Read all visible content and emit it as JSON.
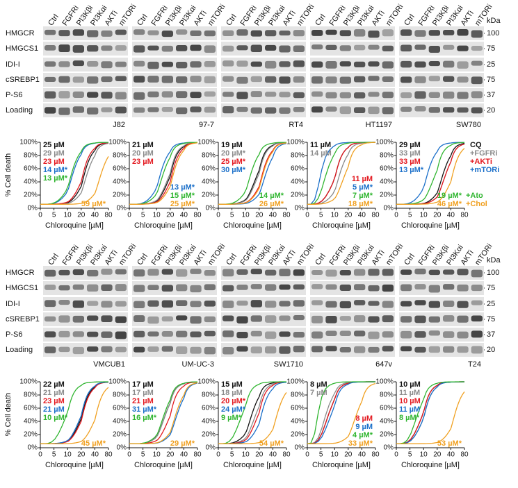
{
  "colors": [
    "#111111",
    "#8a8a8a",
    "#e3171e",
    "#1a6fc9",
    "#2fb52f",
    "#f0a020"
  ],
  "rows": [
    {
      "blot_rows": [
        "HMGCR",
        "HMGCS1",
        "IDI-I",
        "cSREBP1",
        "P-S6",
        "Loading"
      ],
      "kda_header": "kDa",
      "kda_markers": [
        "100",
        "75",
        "25",
        "75",
        "37",
        "20"
      ],
      "ylabel": "% Cell death",
      "panels": [
        {
          "cell_line": "J82",
          "lanes": [
            "Ctrl",
            "FGFRi",
            "PI3Kβi",
            "PI3Kαi",
            "AKTi",
            "mTORi"
          ],
          "xlabel": "Chloroquine [µM]",
          "xlim": [
            0,
            80
          ],
          "xticks": [
            0,
            5,
            10,
            20,
            40,
            80
          ],
          "ylim": [
            0,
            100
          ],
          "yticks": [
            {
              "value": 0,
              "label": "0%"
            },
            {
              "value": 20,
              "label": "20%"
            },
            {
              "value": 40,
              "label": "40%"
            },
            {
              "value": 60,
              "label": "60%"
            },
            {
              "value": 80,
              "label": "80%"
            },
            {
              "value": 100,
              "label": "100%"
            }
          ],
          "ic50_values": [
            25,
            29,
            23,
            14,
            13,
            59
          ],
          "ic50_labels": [
            "25 µM",
            "29 µM",
            "23 µM",
            "14 µM*",
            "13 µM*",
            "59 µM*"
          ]
        },
        {
          "cell_line": "97-7",
          "lanes": [
            "Ctrl",
            "FGFRi",
            "PI3Kβi",
            "PI3Kαi",
            "AKTi",
            "mTORi"
          ],
          "xlabel": "Chloroquine [µM]",
          "xlim": [
            0,
            80
          ],
          "xticks": [
            0,
            5,
            10,
            20,
            40,
            80
          ],
          "ylim": [
            0,
            100
          ],
          "yticks": [
            {
              "value": 0,
              "label": "0%"
            },
            {
              "value": 20,
              "label": "20%"
            },
            {
              "value": 40,
              "label": "40%"
            },
            {
              "value": 60,
              "label": "60%"
            },
            {
              "value": 80,
              "label": "80%"
            },
            {
              "value": 100,
              "label": "100%"
            }
          ],
          "ic50_values": [
            21,
            20,
            23,
            13,
            15,
            25
          ],
          "ic50_labels": [
            "21 µM",
            "20 µM",
            "23 µM",
            "13 µM*",
            "15 µM*",
            "25 µM*"
          ]
        },
        {
          "cell_line": "RT4",
          "lanes": [
            "Ctrl",
            "FGFRi",
            "PI3Kβi",
            "PI3Kαi",
            "AKTi",
            "mTORi"
          ],
          "xlabel": "Chloroquine [µM]",
          "xlim": [
            0,
            80
          ],
          "xticks": [
            0,
            5,
            10,
            20,
            40,
            80
          ],
          "ylim": [
            0,
            100
          ],
          "yticks": [
            {
              "value": 0,
              "label": "0%"
            },
            {
              "value": 20,
              "label": "20%"
            },
            {
              "value": 40,
              "label": "40%"
            },
            {
              "value": 60,
              "label": "60%"
            },
            {
              "value": 80,
              "label": "80%"
            },
            {
              "value": 100,
              "label": "100%"
            }
          ],
          "ic50_values": [
            19,
            20,
            25,
            30,
            14,
            26
          ],
          "ic50_labels": [
            "19 µM",
            "20 µM*",
            "25 µM*",
            "30 µM*",
            "14 µM*",
            "26 µM*"
          ]
        },
        {
          "cell_line": "HT1197",
          "lanes": [
            "Ctrl",
            "FGFRi",
            "PI3Kβi",
            "PI3Kαi",
            "AKTi",
            "mTORi"
          ],
          "xlabel": "Chloroquine [µM]",
          "xlim": [
            0,
            80
          ],
          "xticks": [
            0,
            5,
            10,
            20,
            40,
            80
          ],
          "ylim": [
            0,
            100
          ],
          "yticks": [
            {
              "value": 0,
              "label": "0%"
            },
            {
              "value": 20,
              "label": "20%"
            },
            {
              "value": 40,
              "label": "40%"
            },
            {
              "value": 60,
              "label": "60%"
            },
            {
              "value": 80,
              "label": "80%"
            },
            {
              "value": 100,
              "label": "100%"
            }
          ],
          "ic50_values": [
            11,
            14,
            11,
            5,
            7,
            18
          ],
          "ic50_labels": [
            "11 µM",
            "14 µM",
            "11 µM",
            "5 µM*",
            "7 µM*",
            "18 µM*"
          ]
        },
        {
          "cell_line": "SW780",
          "lanes": [
            "Ctrl",
            "FGFRi",
            "PI3Kβi",
            "PI3Kαi",
            "AKTi",
            "mTORi"
          ],
          "xlabel": "Chloroquine [µM]",
          "xlim": [
            0,
            80
          ],
          "xticks": [
            0,
            5,
            10,
            20,
            40,
            80
          ],
          "ylim": [
            0,
            100
          ],
          "yticks": [
            {
              "value": 0,
              "label": "0%"
            },
            {
              "value": 20,
              "label": "20%"
            },
            {
              "value": 40,
              "label": "40%"
            },
            {
              "value": 60,
              "label": "60%"
            },
            {
              "value": 80,
              "label": "80%"
            },
            {
              "value": 100,
              "label": "100%"
            }
          ],
          "ic50_values": [
            29,
            33,
            33,
            13,
            19,
            46
          ],
          "ic50_labels": [
            "29 µM",
            "33 µM",
            "33 µM",
            "13 µM*",
            "19 µM*",
            "46 µM*"
          ],
          "legend": [
            "CQ",
            "+FGFRi",
            "+AKTi",
            "+mTORi",
            "+Ato",
            "+Chol"
          ]
        }
      ]
    },
    {
      "blot_rows": [
        "HMGCR",
        "HMGCS1",
        "IDI-I",
        "cSREBP1",
        "P-S6",
        "Loading"
      ],
      "kda_header": "kDa",
      "kda_markers": [
        "100",
        "75",
        "25",
        "75",
        "37",
        "20"
      ],
      "ylabel": "% Cell death",
      "panels": [
        {
          "cell_line": "VMCUB1",
          "lanes": [
            "Ctrl",
            "FGFRi",
            "PI3Kβi",
            "PI3Kαi",
            "AKTi",
            "mTORi"
          ],
          "xlabel": "Chloroquine [µM]",
          "xlim": [
            0,
            80
          ],
          "xticks": [
            0,
            5,
            10,
            20,
            40,
            80
          ],
          "ylim": [
            0,
            100
          ],
          "yticks": [
            {
              "value": 0,
              "label": "0%"
            },
            {
              "value": 20,
              "label": "20%"
            },
            {
              "value": 40,
              "label": "40%"
            },
            {
              "value": 60,
              "label": "60%"
            },
            {
              "value": 80,
              "label": "80%"
            },
            {
              "value": 100,
              "label": "100%"
            }
          ],
          "ic50_values": [
            22,
            21,
            23,
            21,
            10,
            45
          ],
          "ic50_labels": [
            "22 µM",
            "21 µM",
            "23 µM",
            "21 µM",
            "10 µM*",
            "45 µM*"
          ]
        },
        {
          "cell_line": "UM-UC-3",
          "lanes": [
            "Ctrl",
            "FGFRi",
            "PI3Kβi",
            "PI3Kαi",
            "AKTi",
            "mTORi"
          ],
          "xlabel": "Chloroquine [µM]",
          "xlim": [
            0,
            80
          ],
          "xticks": [
            0,
            5,
            10,
            20,
            40,
            80
          ],
          "ylim": [
            0,
            100
          ],
          "yticks": [
            {
              "value": 0,
              "label": "0%"
            },
            {
              "value": 20,
              "label": "20%"
            },
            {
              "value": 40,
              "label": "40%"
            },
            {
              "value": 60,
              "label": "60%"
            },
            {
              "value": 80,
              "label": "80%"
            },
            {
              "value": 100,
              "label": "100%"
            }
          ],
          "ic50_values": [
            17,
            17,
            21,
            31,
            16,
            29
          ],
          "ic50_labels": [
            "17 µM",
            "17 µM",
            "21 µM",
            "31 µM*",
            "16 µM*",
            "29 µM*"
          ]
        },
        {
          "cell_line": "SW1710",
          "lanes": [
            "Ctrl",
            "FGFRi",
            "PI3Kβi",
            "PI3Kαi",
            "AKTi",
            "mTORi"
          ],
          "xlabel": "Chloroquine [µM]",
          "xlim": [
            0,
            80
          ],
          "xticks": [
            0,
            5,
            10,
            20,
            40,
            80
          ],
          "ylim": [
            0,
            100
          ],
          "yticks": [
            {
              "value": 0,
              "label": "0%"
            },
            {
              "value": 20,
              "label": "20%"
            },
            {
              "value": 40,
              "label": "40%"
            },
            {
              "value": 60,
              "label": "60%"
            },
            {
              "value": 80,
              "label": "80%"
            },
            {
              "value": 100,
              "label": "100%"
            }
          ],
          "ic50_values": [
            15,
            18,
            20,
            24,
            9,
            54
          ],
          "ic50_labels": [
            "15 µM",
            "18 µM",
            "20 µM*",
            "24 µM*",
            "9 µM*",
            "54 µM*"
          ]
        },
        {
          "cell_line": "647v",
          "lanes": [
            "Ctrl",
            "FGFRi",
            "PI3Kβi",
            "PI3Kαi",
            "AKTi",
            "mTORi"
          ],
          "xlabel": "Chloroquine [µM]",
          "xlim": [
            0,
            80
          ],
          "xticks": [
            0,
            5,
            10,
            20,
            40,
            80
          ],
          "ylim": [
            0,
            100
          ],
          "yticks": [
            {
              "value": 0,
              "label": "0%"
            },
            {
              "value": 20,
              "label": "20%"
            },
            {
              "value": 40,
              "label": "40%"
            },
            {
              "value": 60,
              "label": "60%"
            },
            {
              "value": 80,
              "label": "80%"
            },
            {
              "value": 100,
              "label": "100%"
            }
          ],
          "ic50_values": [
            8,
            7,
            8,
            9,
            4,
            33
          ],
          "ic50_labels": [
            "8 µM",
            "7 µM",
            "8 µM",
            "9 µM",
            "4 µM*",
            "33 µM*"
          ]
        },
        {
          "cell_line": "T24",
          "lanes": [
            "Ctrl",
            "FGFRi",
            "PI3Kβi",
            "PI3Kαi",
            "AKTi",
            "mTORi"
          ],
          "xlabel": "Chloroquine [µM]",
          "xlim": [
            0,
            80
          ],
          "xticks": [
            0,
            5,
            10,
            20,
            40,
            80
          ],
          "ylim": [
            0,
            100
          ],
          "yticks": [
            {
              "value": 0,
              "label": "0%"
            },
            {
              "value": 20,
              "label": "20%"
            },
            {
              "value": 40,
              "label": "40%"
            },
            {
              "value": 60,
              "label": "60%"
            },
            {
              "value": 80,
              "label": "80%"
            },
            {
              "value": 100,
              "label": "100%"
            }
          ],
          "ic50_values": [
            10,
            11,
            10,
            11,
            8,
            53
          ],
          "ic50_labels": [
            "10 µM",
            "11 µM",
            "10 µM",
            "11 µM",
            "8 µM*",
            "53 µM*"
          ]
        }
      ]
    }
  ]
}
